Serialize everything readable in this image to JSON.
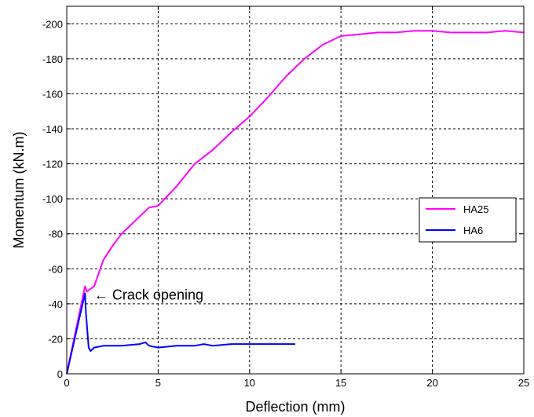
{
  "chart_data": {
    "type": "line",
    "title": "",
    "xlabel": "Deflection (mm)",
    "ylabel": "Momentum (kN.m)",
    "xlim": [
      0,
      25
    ],
    "ylim": [
      0,
      -210
    ],
    "y_axis_reversed": true,
    "grid": true,
    "grid_style": "dashed",
    "x_ticks": [
      0,
      5,
      10,
      15,
      20,
      25
    ],
    "x_tick_labels": [
      "0",
      "5",
      "10",
      "15",
      "20",
      "25"
    ],
    "y_ticks": [
      0,
      -20,
      -40,
      -60,
      -80,
      -100,
      -120,
      -140,
      -160,
      -180,
      -200
    ],
    "y_tick_labels": [
      "0",
      "-20",
      "-40",
      "-60",
      "-80",
      "-100",
      "-120",
      "-140",
      "-160",
      "-180",
      "-200"
    ],
    "legend_position": "right",
    "series": [
      {
        "name": "HA25",
        "color": "#ff00ff",
        "x": [
          0,
          0.5,
          1.0,
          1.1,
          1.5,
          2.0,
          2.5,
          3.0,
          3.5,
          4.0,
          4.5,
          5.0,
          6.0,
          7.0,
          8.0,
          9.0,
          10.0,
          11.0,
          12.0,
          13.0,
          14.0,
          15.0,
          16.0,
          17.0,
          18.0,
          19.0,
          20.0,
          21.0,
          22.0,
          23.0,
          24.0,
          25.0
        ],
        "y": [
          0,
          -25,
          -50,
          -47,
          -50,
          -65,
          -73,
          -80,
          -85,
          -90,
          -95,
          -96,
          -107,
          -120,
          -128,
          -138,
          -147,
          -158,
          -170,
          -180,
          -188,
          -193,
          -194,
          -195,
          -195,
          -196,
          -196,
          -195,
          -195,
          -195,
          -196,
          -195
        ]
      },
      {
        "name": "HA6",
        "color": "#0000ff",
        "x": [
          0,
          0.5,
          1.0,
          1.05,
          1.2,
          1.3,
          1.5,
          2.0,
          3.0,
          4.0,
          4.3,
          4.5,
          5.0,
          6.0,
          7.0,
          7.5,
          8.0,
          9.0,
          10.0,
          11.0,
          12.0,
          12.5
        ],
        "y": [
          0,
          -23,
          -46,
          -35,
          -15,
          -13,
          -15,
          -16,
          -16,
          -17,
          -18,
          -16,
          -15,
          -16,
          -16,
          -17,
          -16,
          -17,
          -17,
          -17,
          -17,
          -17
        ]
      }
    ],
    "annotations": [
      {
        "text": "← Crack opening",
        "x": 1.5,
        "y": -45
      }
    ]
  }
}
